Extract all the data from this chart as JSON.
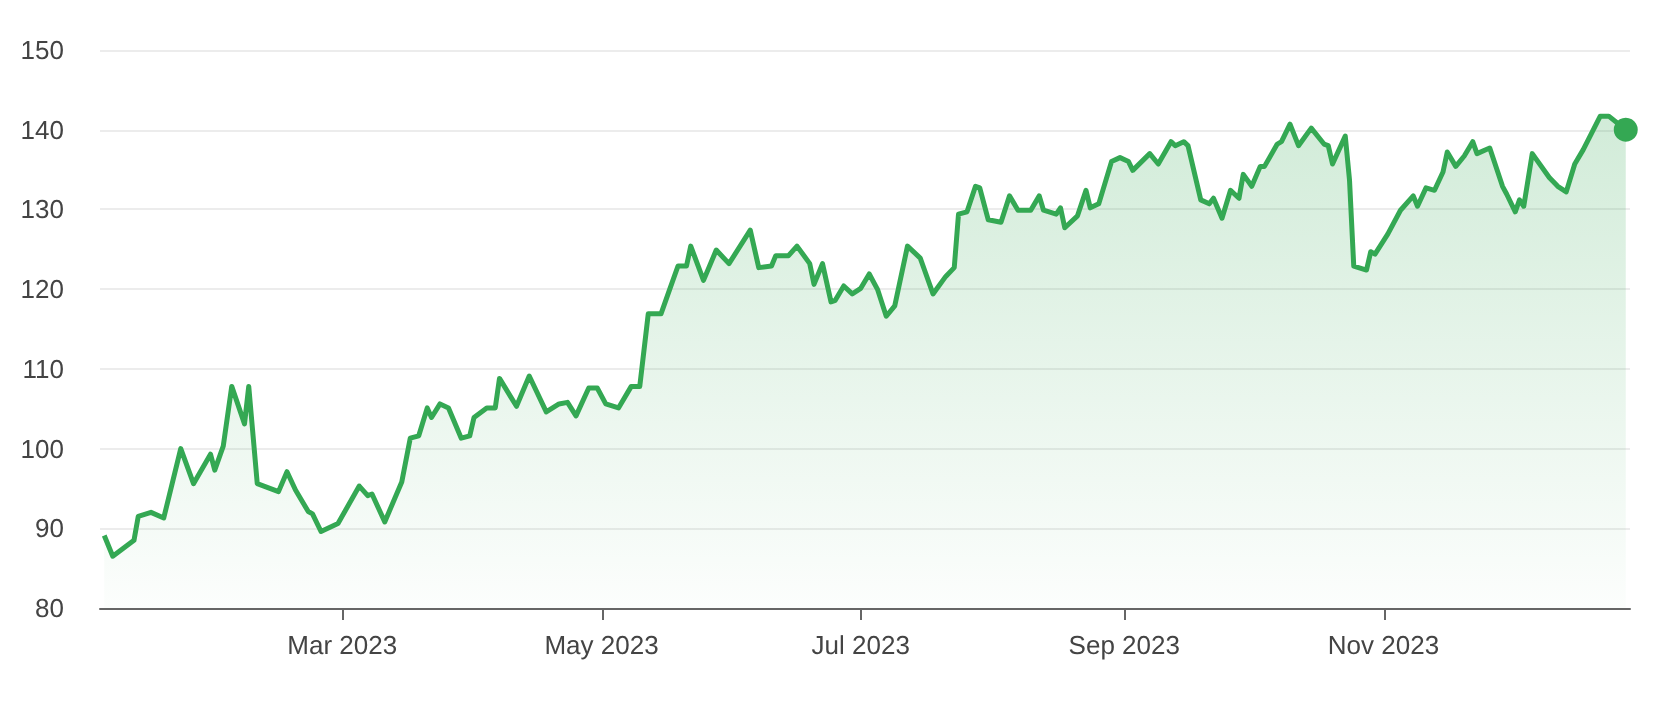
{
  "chart_data": {
    "type": "area",
    "x": [
      "2023-01-04",
      "2023-01-06",
      "2023-01-11",
      "2023-01-12",
      "2023-01-15",
      "2023-01-18",
      "2023-01-22",
      "2023-01-25",
      "2023-01-29",
      "2023-01-30",
      "2023-02-01",
      "2023-02-03",
      "2023-02-06",
      "2023-02-07",
      "2023-02-09",
      "2023-02-14",
      "2023-02-16",
      "2023-02-18",
      "2023-02-21",
      "2023-02-22",
      "2023-02-24",
      "2023-02-28",
      "2023-03-05",
      "2023-03-07",
      "2023-03-08",
      "2023-03-11",
      "2023-03-15",
      "2023-03-17",
      "2023-03-19",
      "2023-03-21",
      "2023-03-22",
      "2023-03-24",
      "2023-03-26",
      "2023-03-29",
      "2023-03-31",
      "2023-04-01",
      "2023-04-04",
      "2023-04-06",
      "2023-04-07",
      "2023-04-11",
      "2023-04-14",
      "2023-04-18",
      "2023-04-21",
      "2023-04-23",
      "2023-04-25",
      "2023-04-28",
      "2023-04-30",
      "2023-05-02",
      "2023-05-05",
      "2023-05-08",
      "2023-05-10",
      "2023-05-12",
      "2023-05-15",
      "2023-05-17",
      "2023-05-19",
      "2023-05-21",
      "2023-05-22",
      "2023-05-25",
      "2023-05-28",
      "2023-05-31",
      "2023-06-05",
      "2023-06-07",
      "2023-06-10",
      "2023-06-11",
      "2023-06-14",
      "2023-06-16",
      "2023-06-19",
      "2023-06-20",
      "2023-06-22",
      "2023-06-24",
      "2023-06-25",
      "2023-06-27",
      "2023-06-29",
      "2023-07-01",
      "2023-07-03",
      "2023-07-05",
      "2023-07-07",
      "2023-07-09",
      "2023-07-12",
      "2023-07-15",
      "2023-07-16",
      "2023-07-18",
      "2023-07-21",
      "2023-07-23",
      "2023-07-24",
      "2023-07-26",
      "2023-07-28",
      "2023-07-29",
      "2023-07-31",
      "2023-08-03",
      "2023-08-05",
      "2023-08-07",
      "2023-08-10",
      "2023-08-12",
      "2023-08-13",
      "2023-08-16",
      "2023-08-17",
      "2023-08-18",
      "2023-08-21",
      "2023-08-23",
      "2023-08-24",
      "2023-08-26",
      "2023-08-29",
      "2023-08-31",
      "2023-09-02",
      "2023-09-03",
      "2023-09-07",
      "2023-09-09",
      "2023-09-12",
      "2023-09-13",
      "2023-09-15",
      "2023-09-16",
      "2023-09-19",
      "2023-09-21",
      "2023-09-22",
      "2023-09-24",
      "2023-09-26",
      "2023-09-28",
      "2023-09-29",
      "2023-10-01",
      "2023-10-03",
      "2023-10-04",
      "2023-10-07",
      "2023-10-08",
      "2023-10-10",
      "2023-10-12",
      "2023-10-15",
      "2023-10-18",
      "2023-10-19",
      "2023-10-20",
      "2023-10-23",
      "2023-10-24",
      "2023-10-25",
      "2023-10-28",
      "2023-10-29",
      "2023-10-30",
      "2023-11-02",
      "2023-11-05",
      "2023-11-08",
      "2023-11-09",
      "2023-11-11",
      "2023-11-13",
      "2023-11-15",
      "2023-11-16",
      "2023-11-18",
      "2023-11-20",
      "2023-11-22",
      "2023-11-23",
      "2023-11-26",
      "2023-11-29",
      "2023-11-30",
      "2023-12-02",
      "2023-12-03",
      "2023-12-04",
      "2023-12-06",
      "2023-12-10",
      "2023-12-12",
      "2023-12-14",
      "2023-12-16",
      "2023-12-18",
      "2023-12-22",
      "2023-12-24",
      "2023-12-28"
    ],
    "series": [
      {
        "color": "#34a853",
        "values": [
          89.1,
          86.5,
          88.5,
          91.5,
          92,
          91.3,
          100,
          95.6,
          99.3,
          97.3,
          100.3,
          107.8,
          103.1,
          107.8,
          95.6,
          94.6,
          97.1,
          94.8,
          92.1,
          91.8,
          89.6,
          90.6,
          95.3,
          94.1,
          94.3,
          90.8,
          95.8,
          101.3,
          101.6,
          105.1,
          103.9,
          105.6,
          105.1,
          101.3,
          101.6,
          103.9,
          105.1,
          105.1,
          108.8,
          105.3,
          109.1,
          104.6,
          105.6,
          105.8,
          104.1,
          107.6,
          107.6,
          105.6,
          105.1,
          107.8,
          107.8,
          116.9,
          116.9,
          119.9,
          122.9,
          122.9,
          125.4,
          121.1,
          124.9,
          123.2,
          127.4,
          122.7,
          122.9,
          124.2,
          124.2,
          125.4,
          123.2,
          120.6,
          123.2,
          118.4,
          118.6,
          120.4,
          119.4,
          120.1,
          121.9,
          119.9,
          116.6,
          117.9,
          125.4,
          123.9,
          122.4,
          119.4,
          121.6,
          122.7,
          129.4,
          129.7,
          132.9,
          132.7,
          128.7,
          128.4,
          131.7,
          129.9,
          129.9,
          131.7,
          129.9,
          129.4,
          130.2,
          127.7,
          129.2,
          132.4,
          130.2,
          130.7,
          136,
          136.5,
          136,
          134.9,
          137,
          135.7,
          138.5,
          138,
          138.5,
          138,
          131.2,
          130.7,
          131.4,
          128.9,
          132.4,
          131.4,
          134.4,
          132.9,
          135.4,
          135.4,
          138.2,
          138.5,
          140.7,
          138,
          140.2,
          138.2,
          138,
          135.7,
          139.2,
          133.7,
          122.9,
          122.4,
          124.7,
          124.4,
          126.9,
          129.9,
          131.7,
          130.4,
          132.7,
          132.4,
          134.7,
          137.2,
          135.4,
          136.7,
          138.5,
          137,
          137.7,
          132.9,
          131.9,
          129.7,
          131.2,
          130.4,
          137,
          134,
          132.9,
          132.2,
          135.7,
          137.5,
          141.7,
          141.7,
          140
        ]
      }
    ],
    "xlim": [
      "2023-01-03",
      "2023-12-29"
    ],
    "xticks": [
      {
        "value": "2023-03-01",
        "label": "Mar 2023"
      },
      {
        "value": "2023-05-01",
        "label": "May 2023"
      },
      {
        "value": "2023-07-01",
        "label": "Jul 2023"
      },
      {
        "value": "2023-09-01",
        "label": "Sep 2023"
      },
      {
        "value": "2023-11-01",
        "label": "Nov 2023"
      }
    ],
    "ylim": [
      80,
      150
    ],
    "yticks": [
      80,
      90,
      100,
      110,
      120,
      130,
      140,
      150
    ],
    "grid": "y"
  }
}
